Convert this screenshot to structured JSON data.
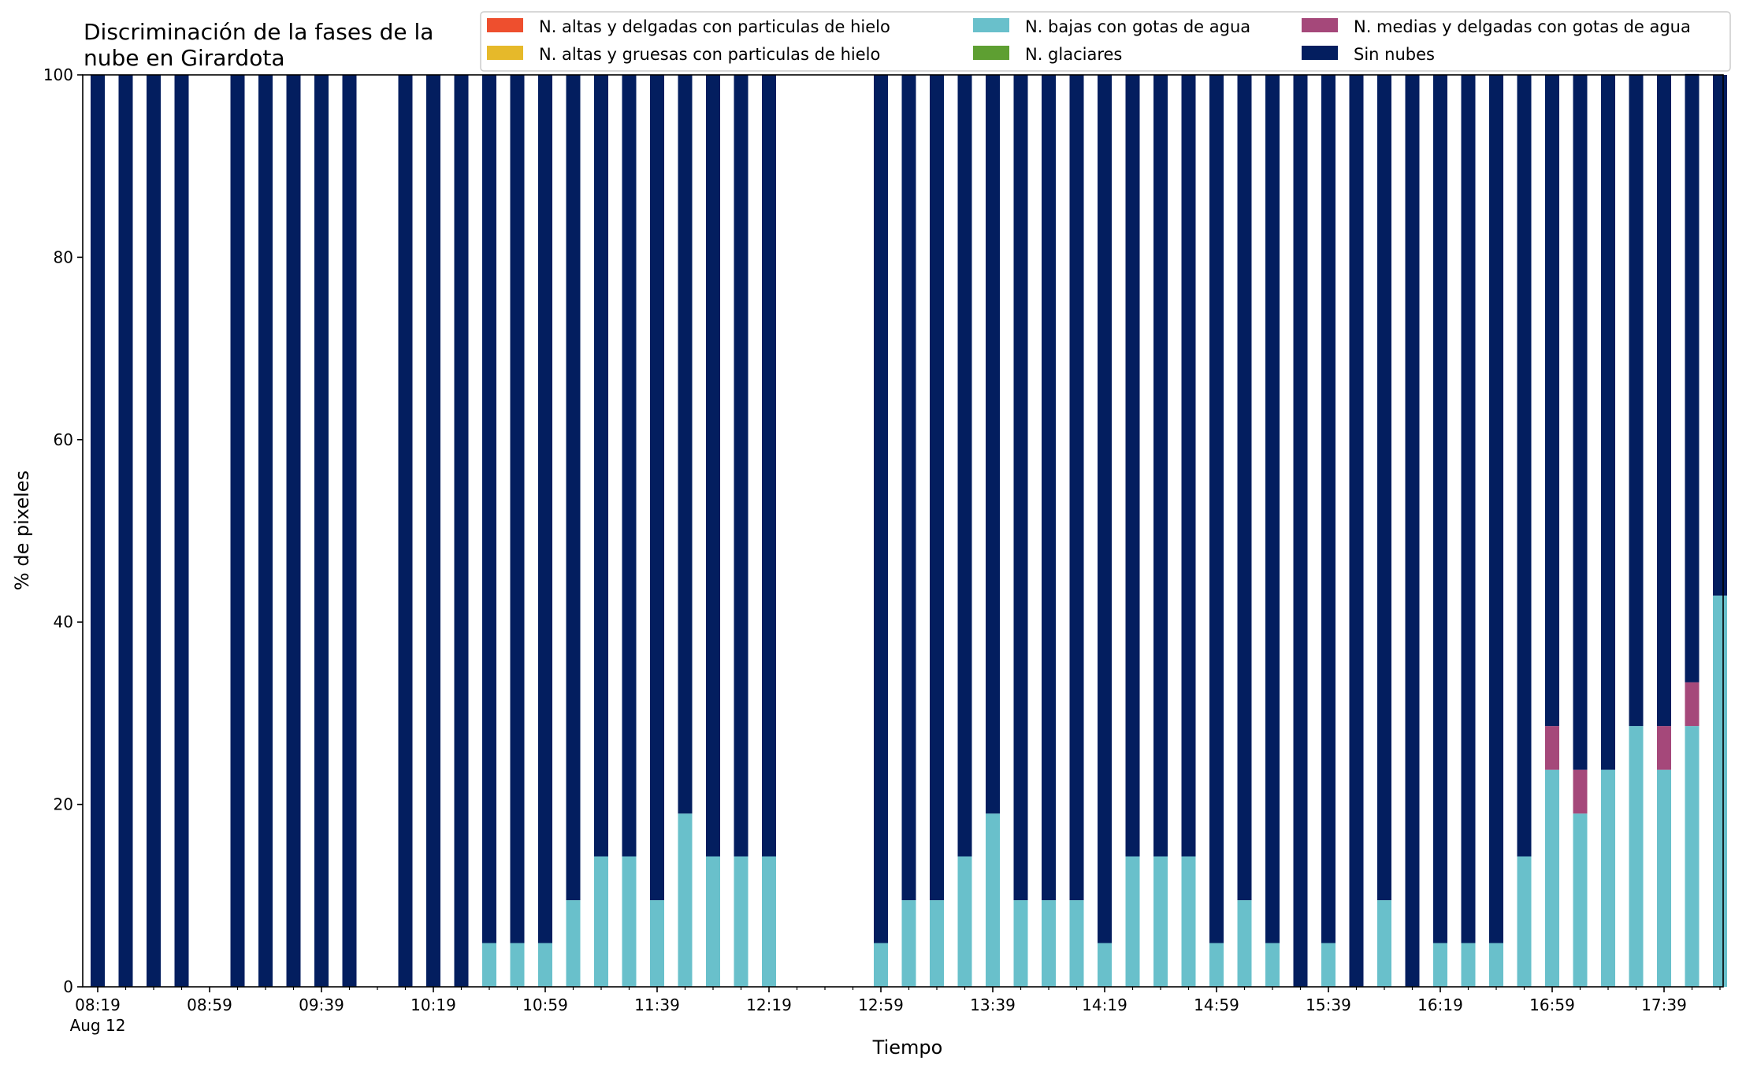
{
  "chart_data": {
    "type": "bar",
    "stacked": true,
    "title": "Discriminación de la fases de la nube en Girardota",
    "title_lines": [
      "Discriminación de la fases de la",
      "nube en Girardota"
    ],
    "xlabel": "Tiempo",
    "ylabel": "% de pixeles",
    "ylim": [
      0,
      100
    ],
    "y_ticks": [
      "0",
      "20",
      "40",
      "60",
      "80",
      "100"
    ],
    "x_start": "08:19",
    "x_step_minutes": 10,
    "x_count": 59,
    "x_tick_labels": [
      "08:19",
      "08:59",
      "09:39",
      "10:19",
      "10:59",
      "11:39",
      "12:19",
      "12:59",
      "13:39",
      "14:19",
      "14:59",
      "15:39",
      "16:19",
      "16:59",
      "17:39"
    ],
    "x_tick_sublabel": "Aug 12",
    "grid": false,
    "legend_position": "top-right",
    "legend_columns": 3,
    "series": [
      {
        "name": "N. altas y delgadas con particulas de hielo",
        "color": "#ee4f2e",
        "values": [
          0,
          0,
          0,
          0,
          0,
          0,
          0,
          0,
          0,
          0,
          0,
          0,
          0,
          0,
          0,
          0,
          0,
          0,
          0,
          0,
          0,
          0,
          0,
          0,
          0,
          0,
          0,
          0,
          0,
          0,
          0,
          0,
          0,
          0,
          0,
          0,
          0,
          0,
          0,
          0,
          0,
          0,
          0,
          0,
          0,
          0,
          0,
          0,
          0,
          0,
          0,
          0,
          0,
          0,
          0,
          0,
          0,
          0,
          0
        ]
      },
      {
        "name": "N. altas y gruesas con particulas de hielo",
        "color": "#e6b92a",
        "values": [
          0,
          0,
          0,
          0,
          0,
          0,
          0,
          0,
          0,
          0,
          0,
          0,
          0,
          0,
          0,
          0,
          0,
          0,
          0,
          0,
          0,
          0,
          0,
          0,
          0,
          0,
          0,
          0,
          0,
          0,
          0,
          0,
          0,
          0,
          0,
          0,
          0,
          0,
          0,
          0,
          0,
          0,
          0,
          0,
          0,
          0,
          0,
          0,
          0,
          0,
          0,
          0,
          0,
          0,
          0,
          0,
          0,
          0,
          0
        ]
      },
      {
        "name": "N. bajas con gotas de agua",
        "color": "#69c0cb",
        "values": [
          0,
          0,
          0,
          0,
          0,
          0,
          0,
          0,
          0,
          0,
          0,
          0,
          0,
          0,
          4.8,
          4.8,
          4.8,
          9.5,
          14.3,
          14.3,
          9.5,
          19,
          14.3,
          14.3,
          14.3,
          0,
          0,
          0,
          4.8,
          9.5,
          9.5,
          14.3,
          19,
          9.5,
          9.5,
          9.5,
          4.8,
          14.3,
          14.3,
          14.3,
          4.8,
          9.5,
          4.8,
          0,
          4.8,
          0,
          9.5,
          0,
          4.8,
          4.8,
          4.8,
          14.3,
          23.8,
          19,
          23.8,
          28.6,
          23.8,
          28.6,
          42.9
        ]
      },
      {
        "name": "N. glaciares",
        "color": "#5e9f32",
        "values": [
          0,
          0,
          0,
          0,
          0,
          0,
          0,
          0,
          0,
          0,
          0,
          0,
          0,
          0,
          0,
          0,
          0,
          0,
          0,
          0,
          0,
          0,
          0,
          0,
          0,
          0,
          0,
          0,
          0,
          0,
          0,
          0,
          0,
          0,
          0,
          0,
          0,
          0,
          0,
          0,
          0,
          0,
          0,
          0,
          0,
          0,
          0,
          0,
          0,
          0,
          0,
          0,
          0,
          0,
          0,
          0,
          0,
          0,
          0
        ]
      },
      {
        "name": "N. medias y delgadas con gotas de agua",
        "color": "#a5487a",
        "values": [
          0,
          0,
          0,
          0,
          0,
          0,
          0,
          0,
          0,
          0,
          0,
          0,
          0,
          0,
          0,
          0,
          0,
          0,
          0,
          0,
          0,
          0,
          0,
          0,
          0,
          0,
          0,
          0,
          0,
          0,
          0,
          0,
          0,
          0,
          0,
          0,
          0,
          0,
          0,
          0,
          0,
          0,
          0,
          0,
          0,
          0,
          0,
          0,
          0,
          0,
          0,
          0,
          4.8,
          4.8,
          0,
          0,
          4.8,
          4.8,
          0
        ]
      },
      {
        "name": "Sin nubes",
        "color": "#031e5f",
        "values": [
          100,
          100,
          100,
          100,
          0,
          100,
          100,
          100,
          100,
          100,
          0,
          100,
          100,
          100,
          95.2,
          95.2,
          95.2,
          90.5,
          85.7,
          85.7,
          90.5,
          81,
          85.7,
          85.7,
          85.7,
          0,
          0,
          0,
          95.2,
          90.5,
          90.5,
          85.7,
          81,
          90.5,
          90.5,
          90.5,
          95.2,
          85.7,
          85.7,
          85.7,
          95.2,
          90.5,
          95.2,
          100,
          95.2,
          100,
          90.5,
          100,
          95.2,
          95.2,
          95.2,
          85.7,
          71.4,
          76.2,
          76.2,
          71.4,
          71.4,
          66.7,
          57.1
        ]
      }
    ]
  }
}
